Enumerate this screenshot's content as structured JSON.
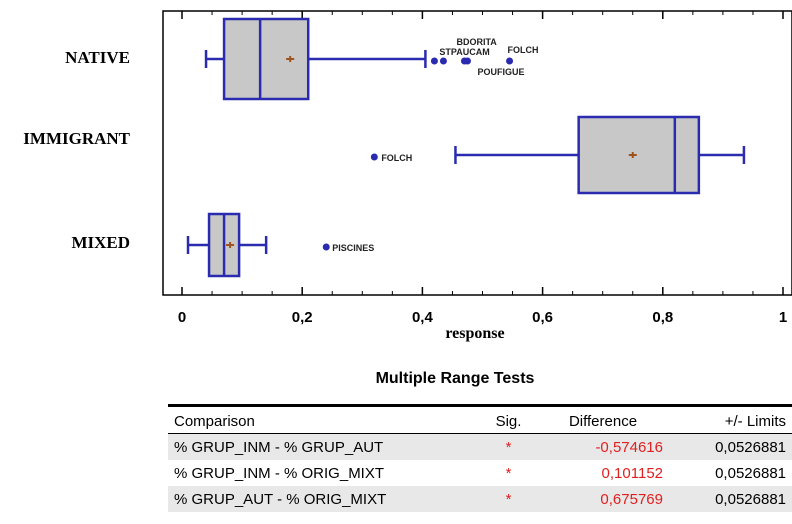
{
  "chart_data": {
    "type": "boxplot",
    "orientation": "horizontal",
    "xlabel": "response",
    "xlim": [
      0,
      1
    ],
    "xticks": [
      "0",
      "0,2",
      "0,4",
      "0,6",
      "0,8",
      "1"
    ],
    "colors": {
      "box_fill": "#c8c8c8",
      "box_stroke": "#2b2bb0",
      "mean_marker": "#a0521c",
      "outlier": "#2b2bb0"
    },
    "categories": [
      {
        "name": "NATIVE",
        "whisker_low": 0.04,
        "q1": 0.07,
        "median": 0.13,
        "q3": 0.21,
        "whisker_high": 0.405,
        "mean": 0.18,
        "outliers": [
          {
            "x": 0.42,
            "label": ""
          },
          {
            "x": 0.435,
            "label": "STPAUCAM"
          },
          {
            "x": 0.47,
            "label": "BDORITA"
          },
          {
            "x": 0.475,
            "label": "POUFIGUE"
          },
          {
            "x": 0.545,
            "label": "FOLCH"
          }
        ]
      },
      {
        "name": "IMMIGRANT",
        "whisker_low": 0.455,
        "q1": 0.66,
        "median": 0.82,
        "q3": 0.86,
        "whisker_high": 0.935,
        "mean": 0.75,
        "outliers": [
          {
            "x": 0.32,
            "label": "FOLCH"
          }
        ]
      },
      {
        "name": "MIXED",
        "whisker_low": 0.01,
        "q1": 0.045,
        "median": 0.07,
        "q3": 0.095,
        "whisker_high": 0.14,
        "mean": 0.08,
        "outliers": [
          {
            "x": 0.24,
            "label": "PISCINES"
          }
        ]
      }
    ]
  },
  "tests": {
    "title": "Multiple Range Tests",
    "headers": {
      "comparison": "Comparison",
      "sig": "Sig.",
      "difference": "Difference",
      "limits": "+/- Limits"
    },
    "rows": [
      {
        "comparison": "% GRUP_INM - % GRUP_AUT",
        "sig": "*",
        "difference": "-0,574616",
        "limits": "0,0526881"
      },
      {
        "comparison": "% GRUP_INM - % ORIG_MIXT",
        "sig": "*",
        "difference": "0,101152",
        "limits": "0,0526881"
      },
      {
        "comparison": "% GRUP_AUT - % ORIG_MIXT",
        "sig": "*",
        "difference": "0,675769",
        "limits": "0,0526881"
      }
    ]
  }
}
